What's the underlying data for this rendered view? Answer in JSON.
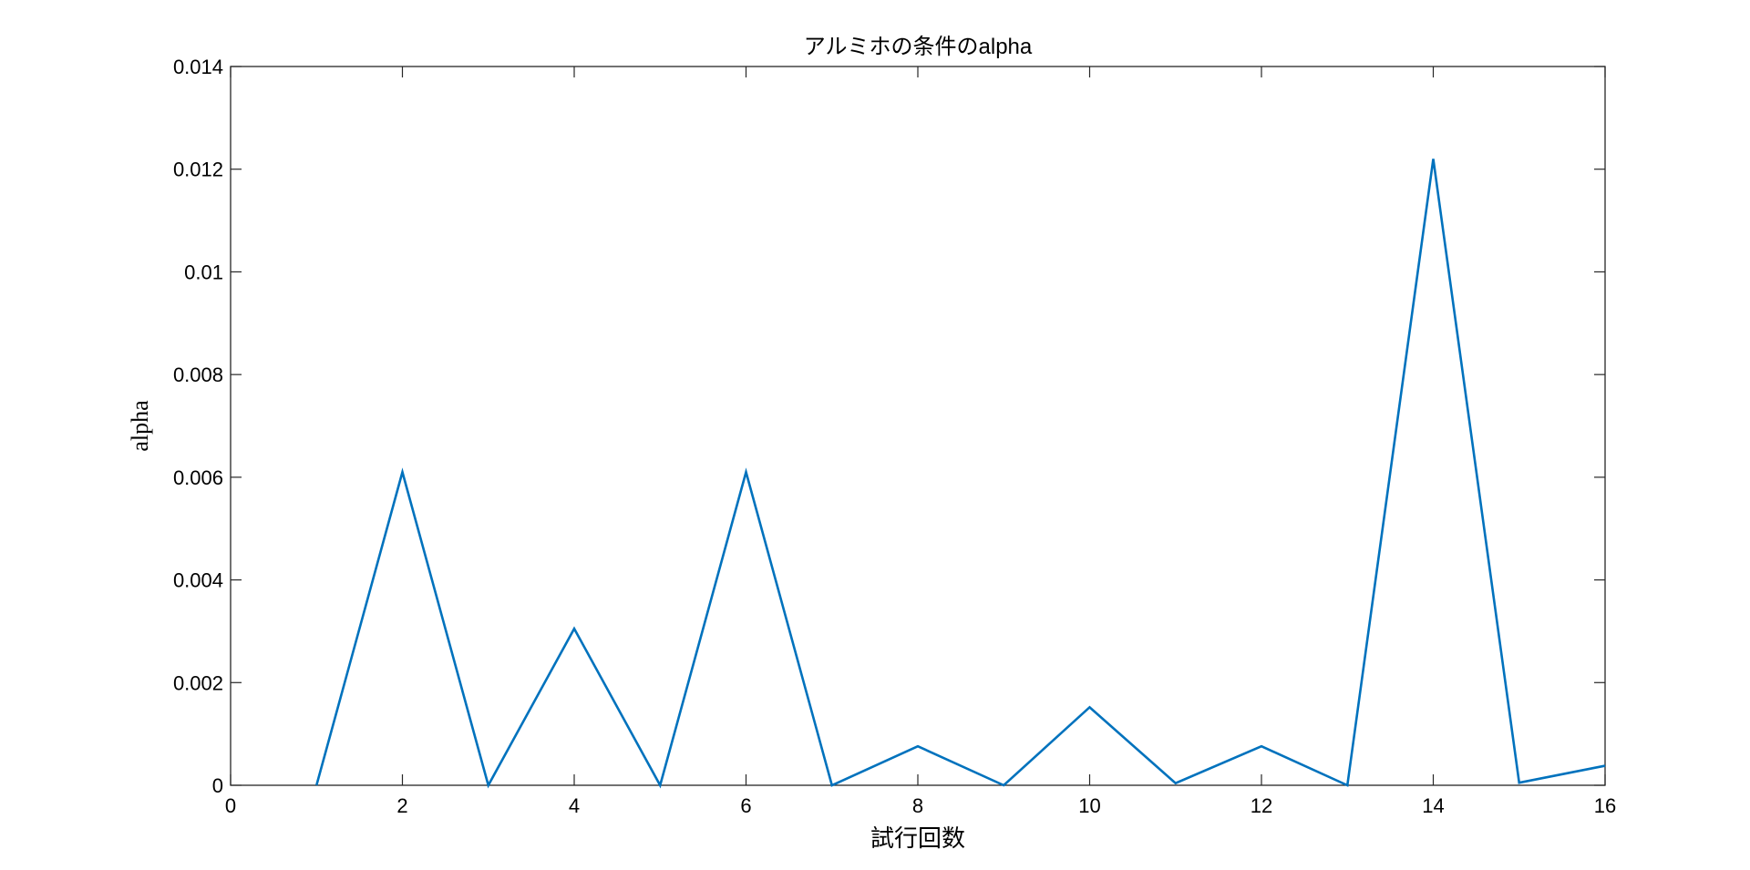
{
  "chart_data": {
    "type": "line",
    "title": "アルミホの条件のalpha",
    "xlabel": "試行回数",
    "ylabel": "alpha",
    "xlim": [
      0,
      16
    ],
    "ylim": [
      0,
      0.014
    ],
    "xticks": [
      0,
      2,
      4,
      6,
      8,
      10,
      12,
      14,
      16
    ],
    "xtick_labels": [
      "0",
      "2",
      "4",
      "6",
      "8",
      "10",
      "12",
      "14",
      "16"
    ],
    "yticks": [
      0,
      0.002,
      0.004,
      0.006,
      0.008,
      0.01,
      0.012,
      0.014
    ],
    "ytick_labels": [
      "0",
      "0.002",
      "0.004",
      "0.006",
      "0.008",
      "0.01",
      "0.012",
      "0.014"
    ],
    "grid": false,
    "series": [
      {
        "color": "#0072BD",
        "x": [
          1,
          2,
          3,
          4,
          5,
          6,
          7,
          8,
          9,
          10,
          11,
          12,
          13,
          14,
          15,
          16
        ],
        "y": [
          0,
          0.0061,
          0,
          0.00305,
          0,
          0.0061,
          0,
          0.00076,
          0,
          0.00152,
          4e-05,
          0.00076,
          0,
          0.0122,
          5e-05,
          0.00038
        ]
      }
    ]
  }
}
